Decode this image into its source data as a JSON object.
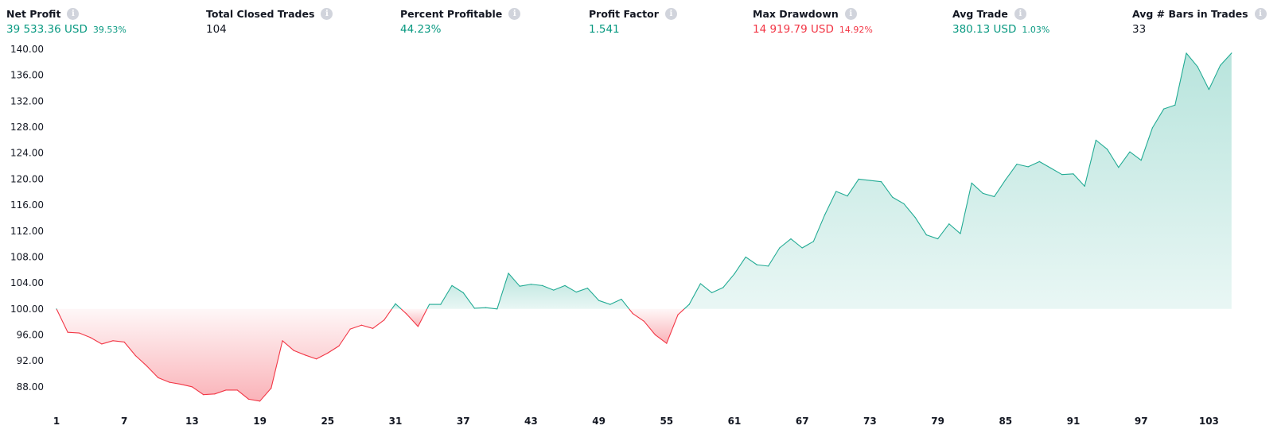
{
  "stats": [
    {
      "label": "Net Profit",
      "value": "39 533.36 USD",
      "pct": "39.53%",
      "tone": "pos"
    },
    {
      "label": "Total Closed Trades",
      "value": "104",
      "pct": "",
      "tone": "neutral"
    },
    {
      "label": "Percent Profitable",
      "value": "44.23%",
      "pct": "",
      "tone": "pos"
    },
    {
      "label": "Profit Factor",
      "value": "1.541",
      "pct": "",
      "tone": "pos"
    },
    {
      "label": "Max Drawdown",
      "value": "14 919.79 USD",
      "pct": "14.92%",
      "tone": "neg"
    },
    {
      "label": "Avg Trade",
      "value": "380.13 USD",
      "pct": "1.03%",
      "tone": "pos"
    },
    {
      "label": "Avg # Bars in Trades",
      "value": "33",
      "pct": "",
      "tone": "neutral"
    }
  ],
  "colors": {
    "positive": "#089981",
    "negative": "#f23645",
    "line_positive": "#22ab94",
    "line_negative": "#f23645"
  },
  "chart_data": {
    "type": "area",
    "baseline": 100,
    "ylim": [
      84,
      140
    ],
    "yticks": [
      "88.00",
      "92.00",
      "96.00",
      "100.00",
      "104.00",
      "108.00",
      "112.00",
      "116.00",
      "120.00",
      "124.00",
      "128.00",
      "132.00",
      "136.00",
      "140.00"
    ],
    "xticks": [
      1,
      7,
      13,
      19,
      25,
      31,
      37,
      43,
      49,
      55,
      61,
      67,
      73,
      79,
      85,
      91,
      97,
      103
    ],
    "xlim": [
      1,
      106
    ],
    "series": [
      {
        "x": [
          1,
          2,
          3,
          4,
          5,
          6,
          7,
          8,
          9,
          10,
          11,
          12,
          13,
          14,
          15,
          16,
          17,
          18,
          19,
          20,
          21,
          22,
          23,
          24,
          25,
          26,
          27,
          28,
          29,
          30,
          31,
          32,
          33,
          34,
          35,
          36,
          37,
          38,
          39,
          40,
          41,
          42,
          43,
          44,
          45,
          46,
          47,
          48,
          49,
          50,
          51,
          52,
          53,
          54,
          55,
          56,
          57,
          58,
          59,
          60,
          61,
          62,
          63,
          64,
          65,
          66,
          67,
          68,
          69,
          70,
          71,
          72,
          73,
          74,
          75,
          76,
          77,
          78,
          79,
          80,
          81,
          82,
          83,
          84,
          85,
          86,
          87,
          88,
          89,
          90,
          91,
          92,
          93,
          94,
          95,
          96,
          97,
          98,
          99,
          100,
          101,
          102,
          103,
          104,
          105
        ],
        "values": [
          100.0,
          96.4,
          96.3,
          95.6,
          94.6,
          95.1,
          94.9,
          92.8,
          91.2,
          89.4,
          88.7,
          88.4,
          88.0,
          86.8,
          86.9,
          87.5,
          87.5,
          86.1,
          85.8,
          87.8,
          95.1,
          93.6,
          92.9,
          92.3,
          93.2,
          94.3,
          96.9,
          97.5,
          97.0,
          98.3,
          100.8,
          99.2,
          97.3,
          100.7,
          100.7,
          103.6,
          102.5,
          100.1,
          100.2,
          100.0,
          105.5,
          103.5,
          103.8,
          103.6,
          102.9,
          103.6,
          102.6,
          103.2,
          101.3,
          100.7,
          101.5,
          99.3,
          98.1,
          96.0,
          94.7,
          99.1,
          100.7,
          103.9,
          102.5,
          103.3,
          105.4,
          108.0,
          106.8,
          106.6,
          109.4,
          110.8,
          109.4,
          110.4,
          114.5,
          118.1,
          117.4,
          120.0,
          119.8,
          119.6,
          117.2,
          116.2,
          114.1,
          111.4,
          110.8,
          113.1,
          111.6,
          119.4,
          117.8,
          117.3,
          119.9,
          122.3,
          121.9,
          122.7,
          121.7,
          120.7,
          120.8,
          118.9,
          126.0,
          124.6,
          121.8,
          124.2,
          122.9,
          127.9,
          130.8,
          131.4,
          139.4,
          137.3,
          133.8,
          137.5,
          139.4
        ]
      }
    ]
  }
}
